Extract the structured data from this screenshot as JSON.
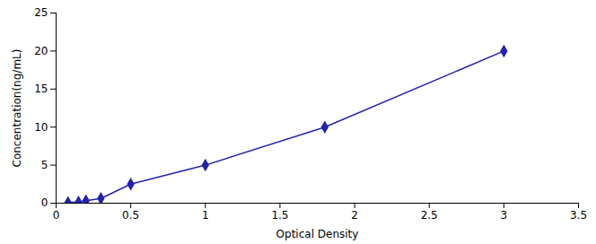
{
  "chart_data": {
    "type": "line",
    "xlabel": "Optical Density",
    "ylabel": "Concentration(ng/mL)",
    "x": [
      0.08,
      0.15,
      0.2,
      0.3,
      0.5,
      1.0,
      1.8,
      3.0
    ],
    "values": [
      0.078,
      0.156,
      0.312,
      0.625,
      2.5,
      5.0,
      10.0,
      20.0
    ],
    "xlim": [
      0,
      3.5
    ],
    "ylim": [
      0,
      25
    ],
    "xticks": [
      0,
      0.5,
      1,
      1.5,
      2,
      2.5,
      3,
      3.5
    ],
    "yticks": [
      0,
      5,
      10,
      15,
      20,
      25
    ],
    "color": "#2222aa",
    "marker": "diamond",
    "grid": false
  }
}
